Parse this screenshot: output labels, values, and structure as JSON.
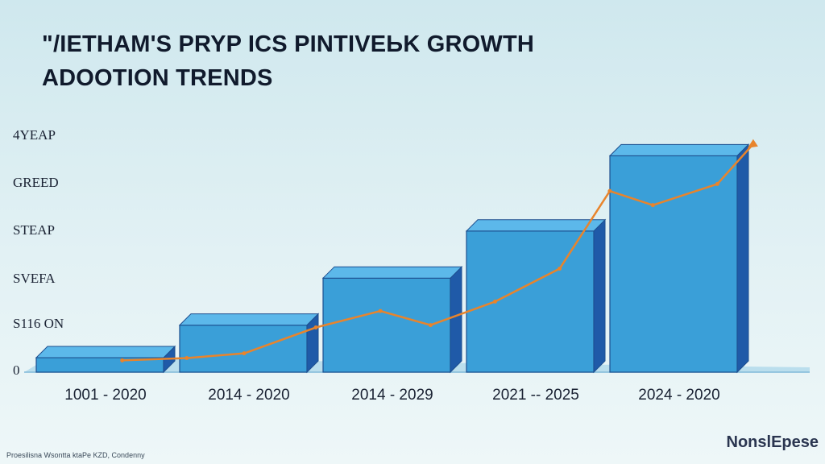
{
  "title_line1": "\"/IETHAM'S PRYP ICS PINTIVEЬK GROWTH",
  "title_line2": "ADOOTION TRENDS",
  "footer_note": "Proesilisna Wsontta ktaPe KZD, Condenny",
  "logo_text": "NonslEpese",
  "colors": {
    "bar_light": "#3a9fd8",
    "bar_dark": "#1f5aa8",
    "trend_line": "#e8842c",
    "floor": "#a7d4ea"
  },
  "chart_data": {
    "type": "bar",
    "title": "\"/IETHAM'S PRYP ICS PINTIVEЬK GROWTH ADOOTION TRENDS",
    "categories": [
      "1001 - 2020",
      "2014 - 2020",
      "2014 - 2029",
      "2021 -- 2025",
      "2024 - 2020"
    ],
    "values": [
      0,
      1,
      2,
      3,
      4.6
    ],
    "y_tick_labels": [
      "0",
      "S116 ON",
      "SVEFA",
      "STEAP",
      "GREED",
      "4YEAP"
    ],
    "ylim": [
      0,
      5
    ],
    "trend_line": {
      "x": [
        0.15,
        0.6,
        1.0,
        1.5,
        1.95,
        2.3,
        2.75,
        3.2,
        3.55,
        3.85,
        4.3,
        4.55
      ],
      "y": [
        0.25,
        0.3,
        0.4,
        0.95,
        1.3,
        1.0,
        1.5,
        2.2,
        3.85,
        3.55,
        4.0,
        4.85
      ]
    },
    "grid": false,
    "legend": "none"
  }
}
